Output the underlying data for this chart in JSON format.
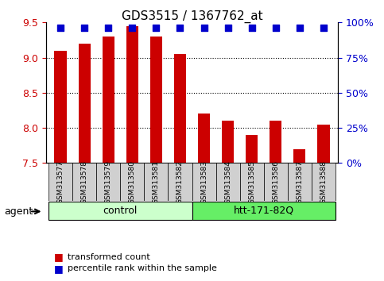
{
  "title": "GDS3515 / 1367762_at",
  "samples": [
    "GSM313577",
    "GSM313578",
    "GSM313579",
    "GSM313580",
    "GSM313581",
    "GSM313582",
    "GSM313583",
    "GSM313584",
    "GSM313585",
    "GSM313586",
    "GSM313587",
    "GSM313588"
  ],
  "bar_values": [
    9.1,
    9.2,
    9.3,
    9.45,
    9.3,
    9.05,
    8.2,
    8.1,
    7.9,
    8.1,
    7.7,
    8.05
  ],
  "bar_color": "#cc0000",
  "dot_color": "#0000cc",
  "ylim_left": [
    7.5,
    9.5
  ],
  "ylim_right": [
    0,
    100
  ],
  "yticks_left": [
    7.5,
    8.0,
    8.5,
    9.0,
    9.5
  ],
  "yticks_right": [
    0,
    25,
    50,
    75,
    100
  ],
  "ytick_labels_right": [
    "0%",
    "25%",
    "50%",
    "75%",
    "100%"
  ],
  "grid_values": [
    8.0,
    8.5,
    9.0
  ],
  "groups": [
    {
      "label": "control",
      "start": 0,
      "end": 6,
      "color": "#ccffcc"
    },
    {
      "label": "htt-171-82Q",
      "start": 6,
      "end": 12,
      "color": "#66ee66"
    }
  ],
  "agent_label": "agent",
  "legend_items": [
    {
      "label": "transformed count",
      "color": "#cc0000"
    },
    {
      "label": "percentile rank within the sample",
      "color": "#0000cc"
    }
  ],
  "bar_width": 0.5,
  "dot_size": 40,
  "plot_bg_color": "#ffffff",
  "tick_color_left": "#cc0000",
  "tick_color_right": "#0000cc",
  "label_box_color": "#d0d0d0"
}
